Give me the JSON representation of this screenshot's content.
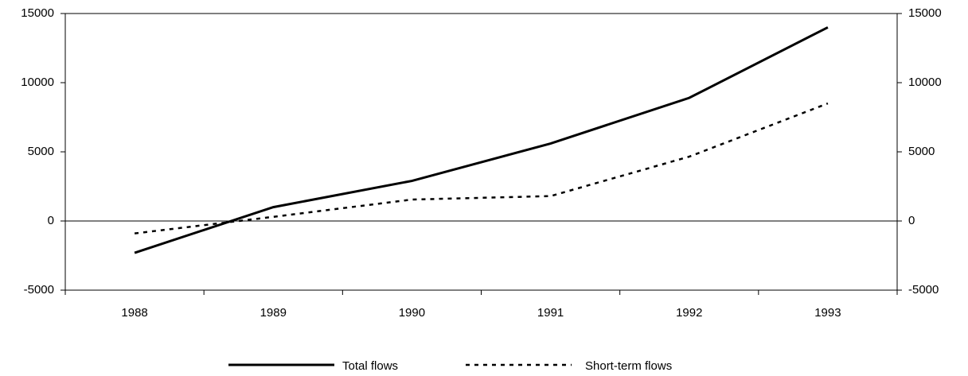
{
  "chart_data": {
    "type": "line",
    "categories": [
      "1988",
      "1989",
      "1990",
      "1991",
      "1992",
      "1993"
    ],
    "series": [
      {
        "name": "Total flows",
        "color": "#000000",
        "dash": "solid",
        "values": [
          -2300,
          1000,
          2900,
          5600,
          8900,
          14000
        ]
      },
      {
        "name": "Short-term flows",
        "color": "#000000",
        "dash": "dashed",
        "values": [
          -900,
          300,
          1550,
          1800,
          4650,
          8500
        ]
      }
    ],
    "ylim": [
      -5000,
      15000
    ],
    "yticks": [
      -5000,
      0,
      5000,
      10000,
      15000
    ],
    "y2lim": [
      -5000,
      15000
    ],
    "y2ticks": [
      -5000,
      0,
      5000,
      10000,
      15000
    ],
    "legend": "bottom"
  }
}
